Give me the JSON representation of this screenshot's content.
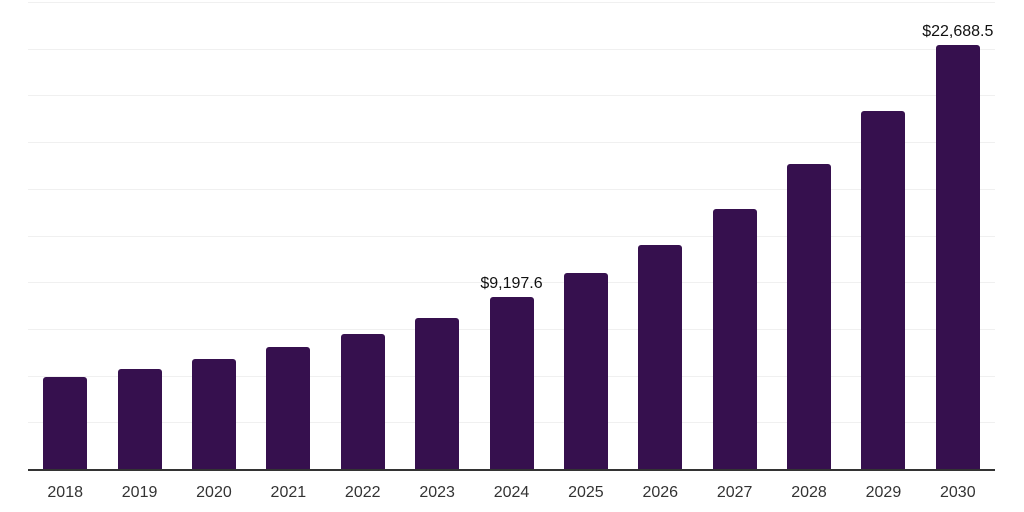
{
  "chart_data": {
    "type": "bar",
    "title": "",
    "xlabel": "",
    "ylabel": "",
    "categories": [
      "2018",
      "2019",
      "2020",
      "2021",
      "2022",
      "2023",
      "2024",
      "2025",
      "2026",
      "2027",
      "2028",
      "2029",
      "2030"
    ],
    "values": [
      4950,
      5340,
      5870,
      6550,
      7250,
      8110,
      9197.6,
      10490,
      12000,
      13940,
      16330,
      19180,
      22688.5
    ],
    "data_labels": {
      "2024": "$9,197.6",
      "2030": "$22,688.5"
    },
    "ylim": [
      0,
      25000
    ],
    "grid_step": 2500,
    "grid": "horizontal-only",
    "legend": "none",
    "y_tick_labels_visible": false,
    "colors": {
      "bar": "#36104E",
      "axis_line": "#333333",
      "gridline": "#F0F0F0",
      "data_label_text": "#111111",
      "x_tick_text": "#333333",
      "background": "#FFFFFF"
    }
  }
}
